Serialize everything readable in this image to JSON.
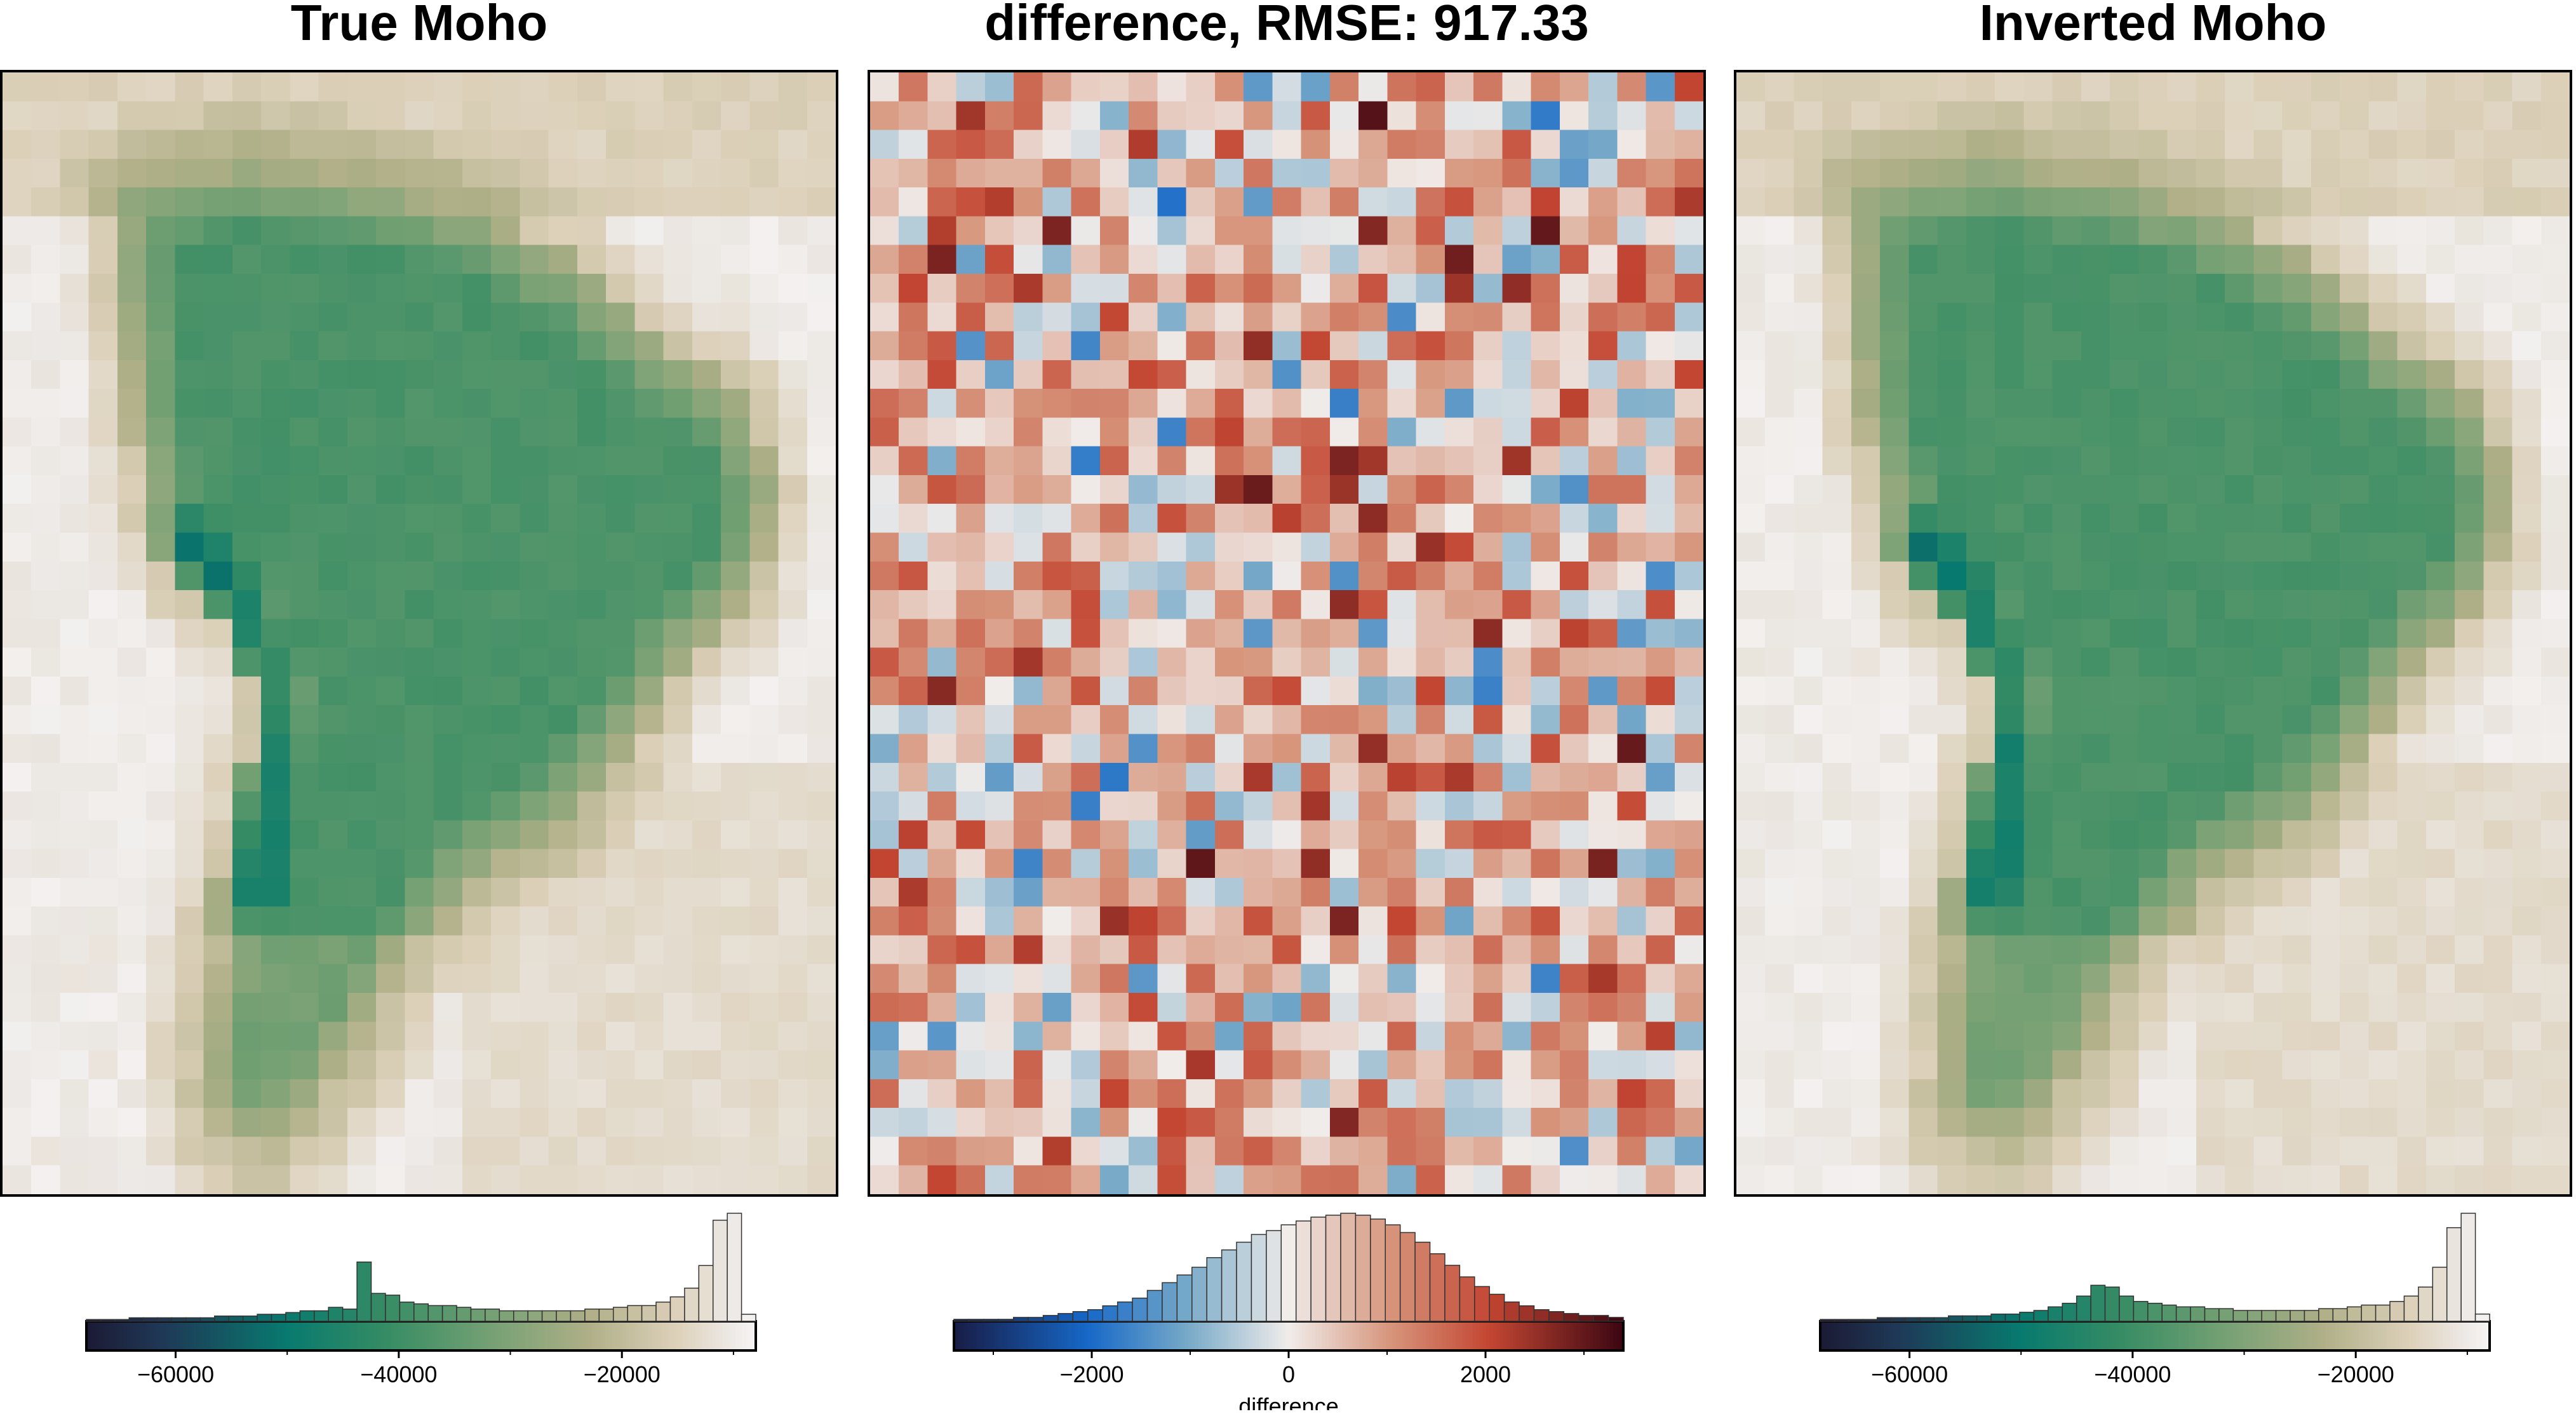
{
  "panels": [
    {
      "title": "True Moho",
      "kind": "moho",
      "seed": 11
    },
    {
      "title": "difference, RMSE: 917.33",
      "kind": "diff",
      "seed": 23
    },
    {
      "title": "Inverted Moho",
      "kind": "moho",
      "seed": 37
    }
  ],
  "chart_data": [
    {
      "type": "heatmap",
      "title": "True Moho",
      "grid": {
        "cols": 29,
        "rows": 39
      },
      "colormap": "bathy-green",
      "colorbar": {
        "range": [
          -68000,
          -8000
        ],
        "ticks": [
          -60000,
          -40000,
          -20000
        ],
        "tick_labels": [
          "−60000",
          "−40000",
          "−20000"
        ],
        "label": "",
        "histogram_counts": [
          1,
          1,
          1,
          2,
          2,
          2,
          2,
          2,
          2,
          3,
          3,
          3,
          4,
          4,
          5,
          6,
          6,
          8,
          7,
          34,
          16,
          15,
          11,
          10,
          9,
          9,
          8,
          7,
          7,
          6,
          6,
          6,
          6,
          6,
          6,
          7,
          7,
          8,
          9,
          9,
          11,
          14,
          19,
          32,
          58,
          62,
          4
        ]
      }
    },
    {
      "type": "heatmap",
      "title": "difference, RMSE: 917.33",
      "grid": {
        "cols": 29,
        "rows": 39
      },
      "colormap": "balance",
      "colorbar": {
        "range": [
          -3400,
          3400
        ],
        "ticks": [
          -2000,
          0,
          2000
        ],
        "tick_labels": [
          "−2000",
          "0",
          "2000"
        ],
        "label": "difference",
        "histogram_counts": [
          1,
          1,
          1,
          1,
          2,
          2,
          3,
          4,
          5,
          6,
          8,
          10,
          12,
          16,
          20,
          24,
          28,
          33,
          37,
          41,
          45,
          47,
          50,
          52,
          54,
          55,
          56,
          55,
          53,
          50,
          46,
          41,
          35,
          29,
          23,
          18,
          14,
          10,
          8,
          6,
          5,
          4,
          3,
          3,
          2
        ]
      }
    },
    {
      "type": "heatmap",
      "title": "Inverted Moho",
      "grid": {
        "cols": 29,
        "rows": 39
      },
      "colormap": "bathy-green",
      "colorbar": {
        "range": [
          -68000,
          -8000
        ],
        "ticks": [
          -60000,
          -40000,
          -20000
        ],
        "tick_labels": [
          "−60000",
          "−40000",
          "−20000"
        ],
        "label": "",
        "histogram_counts": [
          1,
          1,
          1,
          1,
          2,
          2,
          2,
          2,
          2,
          3,
          3,
          3,
          4,
          4,
          5,
          6,
          8,
          10,
          14,
          20,
          19,
          14,
          11,
          10,
          9,
          8,
          8,
          7,
          7,
          6,
          6,
          6,
          6,
          6,
          6,
          7,
          7,
          8,
          9,
          9,
          11,
          14,
          19,
          30,
          52,
          60,
          4
        ]
      }
    }
  ]
}
